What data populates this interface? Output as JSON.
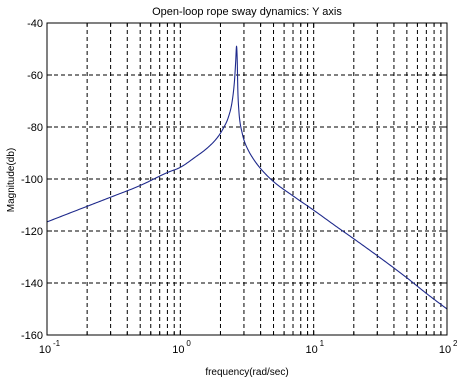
{
  "chart_data": {
    "type": "line",
    "title": "Open-loop rope sway dynamics: Y axis",
    "xlabel": "frequency(rad/sec)",
    "ylabel": "Magnitude(db)",
    "xscale": "log",
    "xlim": [
      0.1,
      100
    ],
    "ylim": [
      -160,
      -40
    ],
    "grid": true,
    "x_ticks": [
      {
        "value": 0.1,
        "base": "10",
        "exp": "-1"
      },
      {
        "value": 1,
        "base": "10",
        "exp": "0"
      },
      {
        "value": 10,
        "base": "10",
        "exp": "1"
      },
      {
        "value": 100,
        "base": "10",
        "exp": "2"
      }
    ],
    "y_ticks": [
      {
        "value": -40,
        "label": "-40"
      },
      {
        "value": -60,
        "label": "-60"
      },
      {
        "value": -80,
        "label": "-80"
      },
      {
        "value": -100,
        "label": "-100"
      },
      {
        "value": -120,
        "label": "-120"
      },
      {
        "value": -140,
        "label": "-140"
      },
      {
        "value": -160,
        "label": "-160"
      }
    ],
    "line_color": "#1f2a8c",
    "series": [
      {
        "x": [
          0.1,
          0.2,
          0.3,
          0.5,
          0.8,
          1.0,
          1.3,
          1.6,
          1.9,
          2.1,
          2.3,
          2.45,
          2.55,
          2.6,
          2.64,
          2.67,
          2.7,
          2.75,
          2.8,
          2.9,
          3.0,
          3.2,
          3.5,
          4.0,
          5.0,
          7.0,
          10,
          15,
          20,
          30,
          50,
          70,
          100
        ],
        "y": [
          -116.5,
          -110.5,
          -107,
          -102.5,
          -97.5,
          -95.5,
          -91.5,
          -88,
          -84,
          -80.5,
          -76,
          -70,
          -62,
          -55,
          -49,
          -54,
          -66,
          -74,
          -78,
          -82,
          -85,
          -88.5,
          -92,
          -96,
          -101,
          -106.5,
          -112,
          -118.5,
          -123,
          -129.5,
          -138,
          -144,
          -150
        ]
      }
    ]
  }
}
